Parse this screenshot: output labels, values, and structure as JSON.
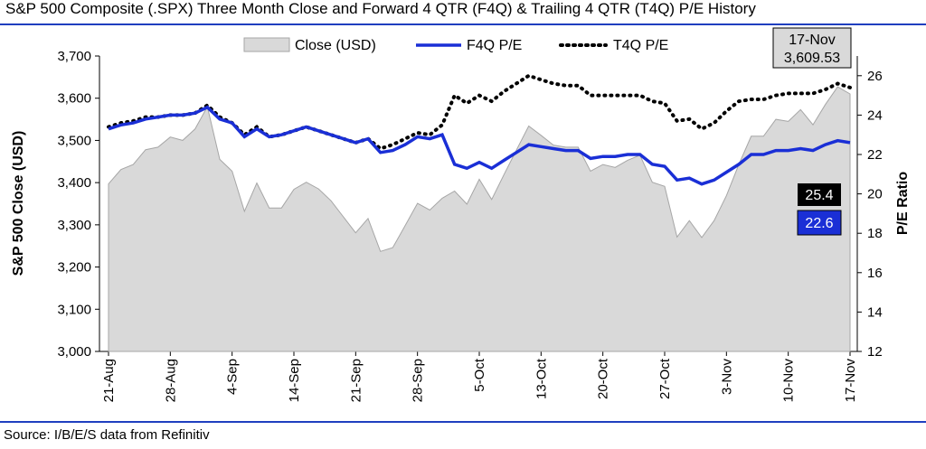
{
  "header": {
    "title": "S&P 500 Composite (.SPX) Three Month Close and Forward 4 QTR (F4Q) & Trailing 4 QTR (T4Q) P/E History"
  },
  "footer": {
    "source": "Source: I/B/E/S data from Refinitiv"
  },
  "colors": {
    "rule": "#1f3fbf",
    "area_fill": "#d9d9d9",
    "area_stroke": "#a6a6a6",
    "f4q_line": "#1a2fd6",
    "t4q_line": "#000000",
    "t4q_label_bg": "#000000",
    "f4q_label_bg": "#1a2fd6",
    "callout_bg": "#d9d9d9"
  },
  "chart_data": {
    "type": "area",
    "title": "S&P 500 Composite (.SPX) Three Month Close and Forward 4 QTR (F4Q) & Trailing 4 QTR (T4Q) P/E History",
    "ylabel": "S&P 500 Close (USD)",
    "y2label": "P/E Ratio",
    "ylim": [
      3000,
      3700
    ],
    "y_ticks": [
      "3,000",
      "3,100",
      "3,200",
      "3,300",
      "3,400",
      "3,500",
      "3,600",
      "3,700"
    ],
    "y2lim": [
      12,
      27
    ],
    "y2_ticks": [
      "12",
      "14",
      "16",
      "18",
      "20",
      "22",
      "24",
      "26"
    ],
    "x_tick_labels": [
      "21-Aug",
      "28-Aug",
      "4-Sep",
      "14-Sep",
      "21-Sep",
      "28-Sep",
      "5-Oct",
      "13-Oct",
      "20-Oct",
      "27-Oct",
      "3-Nov",
      "10-Nov",
      "17-Nov"
    ],
    "x_tick_index": [
      0,
      5,
      10,
      15,
      20,
      25,
      30,
      35,
      40,
      45,
      50,
      55,
      60
    ],
    "grid": false,
    "legend_position": "top",
    "series": [
      {
        "name": "Close (USD)",
        "type": "area",
        "axis": "left",
        "values": [
          3397,
          3431,
          3443,
          3478,
          3484,
          3508,
          3500,
          3527,
          3580,
          3455,
          3427,
          3332,
          3399,
          3340,
          3340,
          3384,
          3401,
          3385,
          3357,
          3319,
          3281,
          3315,
          3237,
          3246,
          3298,
          3351,
          3335,
          3363,
          3380,
          3349,
          3408,
          3360,
          3419,
          3477,
          3534,
          3512,
          3489,
          3484,
          3484,
          3427,
          3443,
          3436,
          3453,
          3465,
          3401,
          3391,
          3271,
          3310,
          3270,
          3310,
          3369,
          3443,
          3510,
          3510,
          3550,
          3545,
          3573,
          3537,
          3585,
          3627,
          3610
        ]
      },
      {
        "name": "F4Q P/E",
        "type": "line",
        "axis": "right",
        "values": [
          23.3,
          23.5,
          23.6,
          23.8,
          23.9,
          24.0,
          24.0,
          24.1,
          24.4,
          23.8,
          23.6,
          22.9,
          23.3,
          22.9,
          23.0,
          23.2,
          23.4,
          23.2,
          23.0,
          22.8,
          22.6,
          22.8,
          22.1,
          22.2,
          22.5,
          22.9,
          22.8,
          23.0,
          21.5,
          21.3,
          21.6,
          21.3,
          21.7,
          22.1,
          22.5,
          22.4,
          22.3,
          22.2,
          22.2,
          21.8,
          21.9,
          21.9,
          22.0,
          22.0,
          21.5,
          21.4,
          20.7,
          20.8,
          20.5,
          20.7,
          21.1,
          21.5,
          22.0,
          22.0,
          22.2,
          22.2,
          22.3,
          22.2,
          22.5,
          22.7,
          22.6
        ]
      },
      {
        "name": "T4Q P/E",
        "type": "line",
        "axis": "right",
        "values": [
          23.4,
          23.6,
          23.7,
          23.9,
          23.9,
          24.0,
          24.0,
          24.1,
          24.5,
          23.9,
          23.6,
          23.0,
          23.4,
          22.9,
          23.0,
          23.2,
          23.4,
          23.2,
          23.0,
          22.8,
          22.6,
          22.8,
          22.3,
          22.5,
          22.8,
          23.1,
          23.0,
          23.5,
          25.0,
          24.6,
          25.0,
          24.7,
          25.2,
          25.6,
          26.0,
          25.8,
          25.6,
          25.5,
          25.5,
          25.0,
          25.0,
          25.0,
          25.0,
          25.0,
          24.7,
          24.6,
          23.7,
          23.8,
          23.3,
          23.6,
          24.2,
          24.7,
          24.8,
          24.8,
          25.0,
          25.1,
          25.1,
          25.1,
          25.3,
          25.6,
          25.4
        ]
      }
    ],
    "callout": {
      "date": "17-Nov",
      "value": "3,609.53"
    },
    "end_labels": {
      "t4q": "25.4",
      "f4q": "22.6"
    }
  }
}
